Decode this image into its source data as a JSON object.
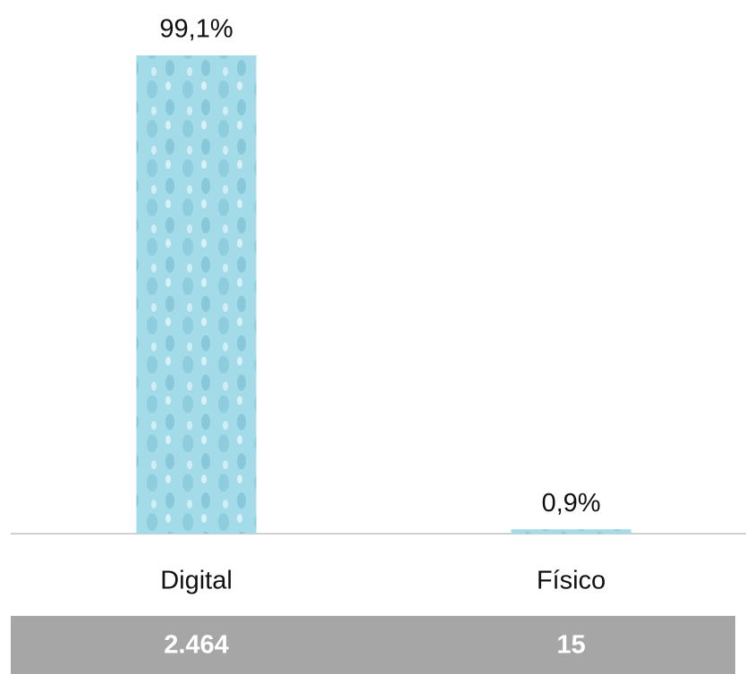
{
  "chart_data": {
    "type": "bar",
    "categories": [
      "Digital",
      "Físico"
    ],
    "values": [
      99.1,
      0.9
    ],
    "value_labels": [
      "99,1%",
      "0,9%"
    ],
    "color": "#a4dbe8",
    "data_table": [
      "2.464",
      "15"
    ]
  }
}
